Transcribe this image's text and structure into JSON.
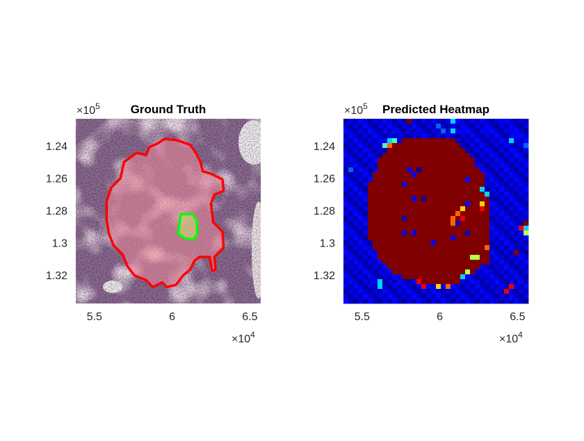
{
  "chart_data": [
    {
      "type": "image",
      "title": "Ground Truth",
      "xlim": [
        53800,
        65700
      ],
      "ylim": [
        122330,
        133760
      ],
      "y_reversed": true,
      "xticks": [
        55000,
        60000,
        65000
      ],
      "xtick_labels": [
        "5.5",
        "6",
        "6.5"
      ],
      "yticks": [
        124000,
        126000,
        128000,
        130000,
        132000
      ],
      "ytick_labels": [
        "1.24",
        "1.26",
        "1.28",
        "1.3",
        "1.32"
      ],
      "x_multiplier": "×10",
      "x_exponent": "4",
      "y_multiplier": "×10",
      "y_exponent": "5",
      "colors": {
        "tissue": "#8d6b93",
        "tumor_fill": "#e8909f",
        "tumor_outline": "#ff0000",
        "inner_outline": "#00ff00",
        "inner_fill": "#b5b884"
      },
      "tumor_contour": [
        [
          59510,
          123576
        ],
        [
          60257,
          123648
        ],
        [
          61152,
          123934
        ],
        [
          61525,
          124436
        ],
        [
          61824,
          125008
        ],
        [
          61973,
          125581
        ],
        [
          62496,
          125725
        ],
        [
          63240,
          126083
        ],
        [
          63315,
          126799
        ],
        [
          62718,
          127014
        ],
        [
          62496,
          127587
        ],
        [
          62643,
          128733
        ],
        [
          63240,
          129305
        ],
        [
          63315,
          130308
        ],
        [
          62718,
          130881
        ],
        [
          62793,
          131668
        ],
        [
          62569,
          131741
        ],
        [
          62420,
          130881
        ],
        [
          61749,
          130881
        ],
        [
          61451,
          131096
        ],
        [
          61152,
          131668
        ],
        [
          60704,
          132027
        ],
        [
          60257,
          132600
        ],
        [
          59661,
          132743
        ],
        [
          59363,
          132457
        ],
        [
          58766,
          132743
        ],
        [
          58319,
          132313
        ],
        [
          57573,
          132027
        ],
        [
          57126,
          131454
        ],
        [
          56827,
          130738
        ],
        [
          56230,
          130165
        ],
        [
          55932,
          129448
        ],
        [
          55783,
          128589
        ],
        [
          55783,
          127443
        ],
        [
          56082,
          126584
        ],
        [
          56678,
          126011
        ],
        [
          56902,
          125008
        ],
        [
          57722,
          124436
        ],
        [
          58319,
          124579
        ],
        [
          58542,
          124078
        ],
        [
          59065,
          123863
        ]
      ],
      "inner_contour": [
        [
          60556,
          128231
        ],
        [
          61301,
          128231
        ],
        [
          61570,
          128589
        ],
        [
          61630,
          129448
        ],
        [
          61376,
          129807
        ],
        [
          60854,
          129735
        ],
        [
          60377,
          129448
        ],
        [
          60481,
          128804
        ]
      ]
    },
    {
      "type": "heatmap",
      "title": "Predicted Heatmap",
      "colormap": "jet",
      "value_scale": "digit/9",
      "xlim": [
        53800,
        65700
      ],
      "ylim": [
        122330,
        133760
      ],
      "y_reversed": true,
      "xticks": [
        55000,
        60000,
        65000
      ],
      "xtick_labels": [
        "5.5",
        "6",
        "6.5"
      ],
      "yticks": [
        124000,
        126000,
        128000,
        130000,
        132000
      ],
      "ytick_labels": [
        "1.24",
        "1.26",
        "1.28",
        "1.3",
        "1.32"
      ],
      "x_multiplier": "×10",
      "x_exponent": "4",
      "y_multiplier": "×10",
      "y_exponent": "5",
      "grid": [
        "00000000000009000000013000000000100000",
        "00000000000000000002001000010000000000",
        "00000000000000010000203010000100001000",
        "00000000000100000000000010000100000100",
        "00000000134199999999999000000000003000",
        "00000000479999999999999900000000000002",
        "00000000099999999999999990000000000100",
        "00000000999999999999999999000000000010",
        "00000009999999999999999999900000001000",
        "00000009999999999999999999900000000000",
        "02000009999990909999999999990000000010",
        "00000099999999099999999999999000000000",
        "00000099999999999999999990999000000000",
        "00000999999909999999999999999000000000",
        "00000999999999999999999999993000000000",
        "00000999999999999999999999999300000000",
        "00000999999999090999999999999900000000",
        "00000999999999999999999990996900000000",
        "00000999999999999999999969998900000000",
        "00000999999999999999999799999900000001",
        "00000999999909999999997989999900000000",
        "00000999999999999999997099999900000009",
        "00000999999999999999999999999900000083",
        "00000999999909099999999990999900000005",
        "00000999999999999999990999999900000000",
        "00000099999999999909999999999900000000",
        "00000099999999999999999999999700000000",
        "00000009999999999999999999999900000900",
        "00000009999999999999999999559900000000",
        "00000000999999999999999999999900000000",
        "00000000099999999999999999990000000000",
        "00000000009999999999999995900000000000",
        "00000000000099999999999930000000000000",
        "00000003000000089999999900000000000000",
        "00000003000000008006070000000000008000",
        "00000000000000000000000000000000080000",
        "00000000000000000000000000000000000000",
        "00000000000000000000000000000000000000"
      ]
    }
  ]
}
